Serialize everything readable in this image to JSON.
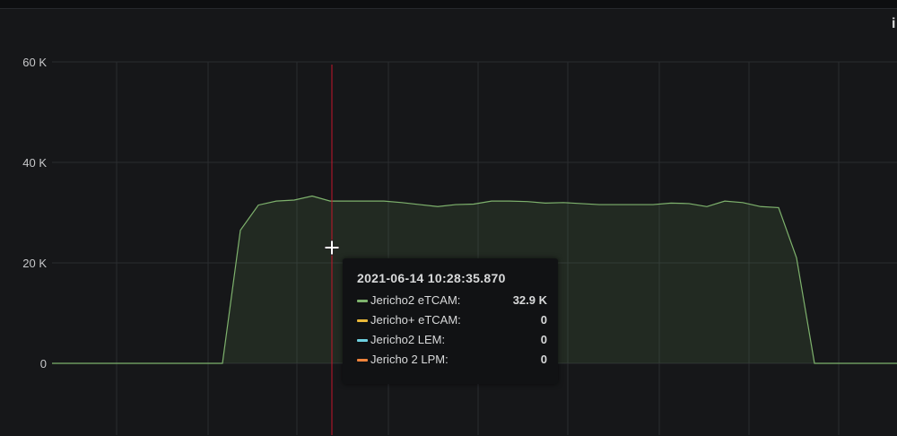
{
  "panel": {
    "info_icon": "info-icon",
    "info_label": "i"
  },
  "chart_data": {
    "type": "area",
    "title": "",
    "xlabel": "",
    "ylabel": "",
    "ylim": [
      0,
      60000
    ],
    "yticks": [
      "0",
      "20 K",
      "40 K",
      "60 K"
    ],
    "ytick_values": [
      0,
      20000,
      40000,
      60000
    ],
    "grid": true,
    "series": [
      {
        "name": "Jericho2 eTCAM",
        "color": "#7eb26d",
        "values": [
          0,
          0,
          0,
          0,
          0,
          0,
          0,
          0,
          0,
          0,
          0,
          26500,
          31500,
          32300,
          32500,
          33300,
          32300,
          32300,
          32300,
          32300,
          32000,
          31600,
          31200,
          31600,
          31700,
          32300,
          32300,
          32200,
          31900,
          32000,
          31800,
          31600,
          31600,
          31600,
          31600,
          31900,
          31800,
          31200,
          32300,
          32000,
          31200,
          31000,
          21000,
          0,
          0,
          0,
          0,
          0,
          0
        ]
      },
      {
        "name": "Jericho+ eTCAM",
        "color": "#eab839",
        "values": []
      },
      {
        "name": "Jericho2 LEM",
        "color": "#6ed0e0",
        "values": []
      },
      {
        "name": "Jericho 2 LPM",
        "color": "#ef843c",
        "values": []
      }
    ],
    "crosshair_color": "#c4162a"
  },
  "tooltip": {
    "time": "2021-06-14 10:28:35.870",
    "rows": [
      {
        "name": "Jericho2 eTCAM:",
        "value": "32.9 K",
        "color": "#7eb26d"
      },
      {
        "name": "Jericho+ eTCAM:",
        "value": "0",
        "color": "#eab839"
      },
      {
        "name": "Jericho2 LEM:",
        "value": "0",
        "color": "#6ed0e0"
      },
      {
        "name": "Jericho 2 LPM:",
        "value": "0",
        "color": "#ef843c"
      }
    ]
  }
}
